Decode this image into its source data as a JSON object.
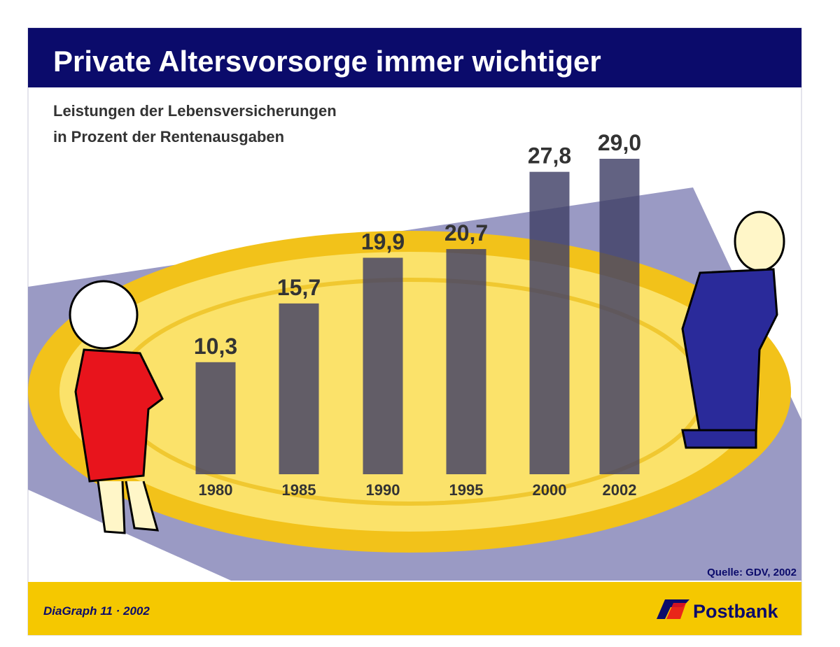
{
  "chart_data": {
    "type": "bar",
    "title": "Private Altersvorsorge immer wichtiger",
    "subtitle": [
      "Leistungen der Lebensversicherungen",
      "in Prozent der Rentenausgaben"
    ],
    "categories": [
      "1980",
      "1985",
      "1990",
      "1995",
      "2000",
      "2002"
    ],
    "values": [
      10.3,
      15.7,
      19.9,
      20.7,
      27.8,
      29.0
    ],
    "value_labels": [
      "10,3",
      "15,7",
      "19,9",
      "20,7",
      "27,8",
      "29,0"
    ],
    "color": "#3f3f66",
    "source": "Quelle: GDV, 2002",
    "footer": "DiaGraph 11 · 2002",
    "logo": "Postbank"
  }
}
